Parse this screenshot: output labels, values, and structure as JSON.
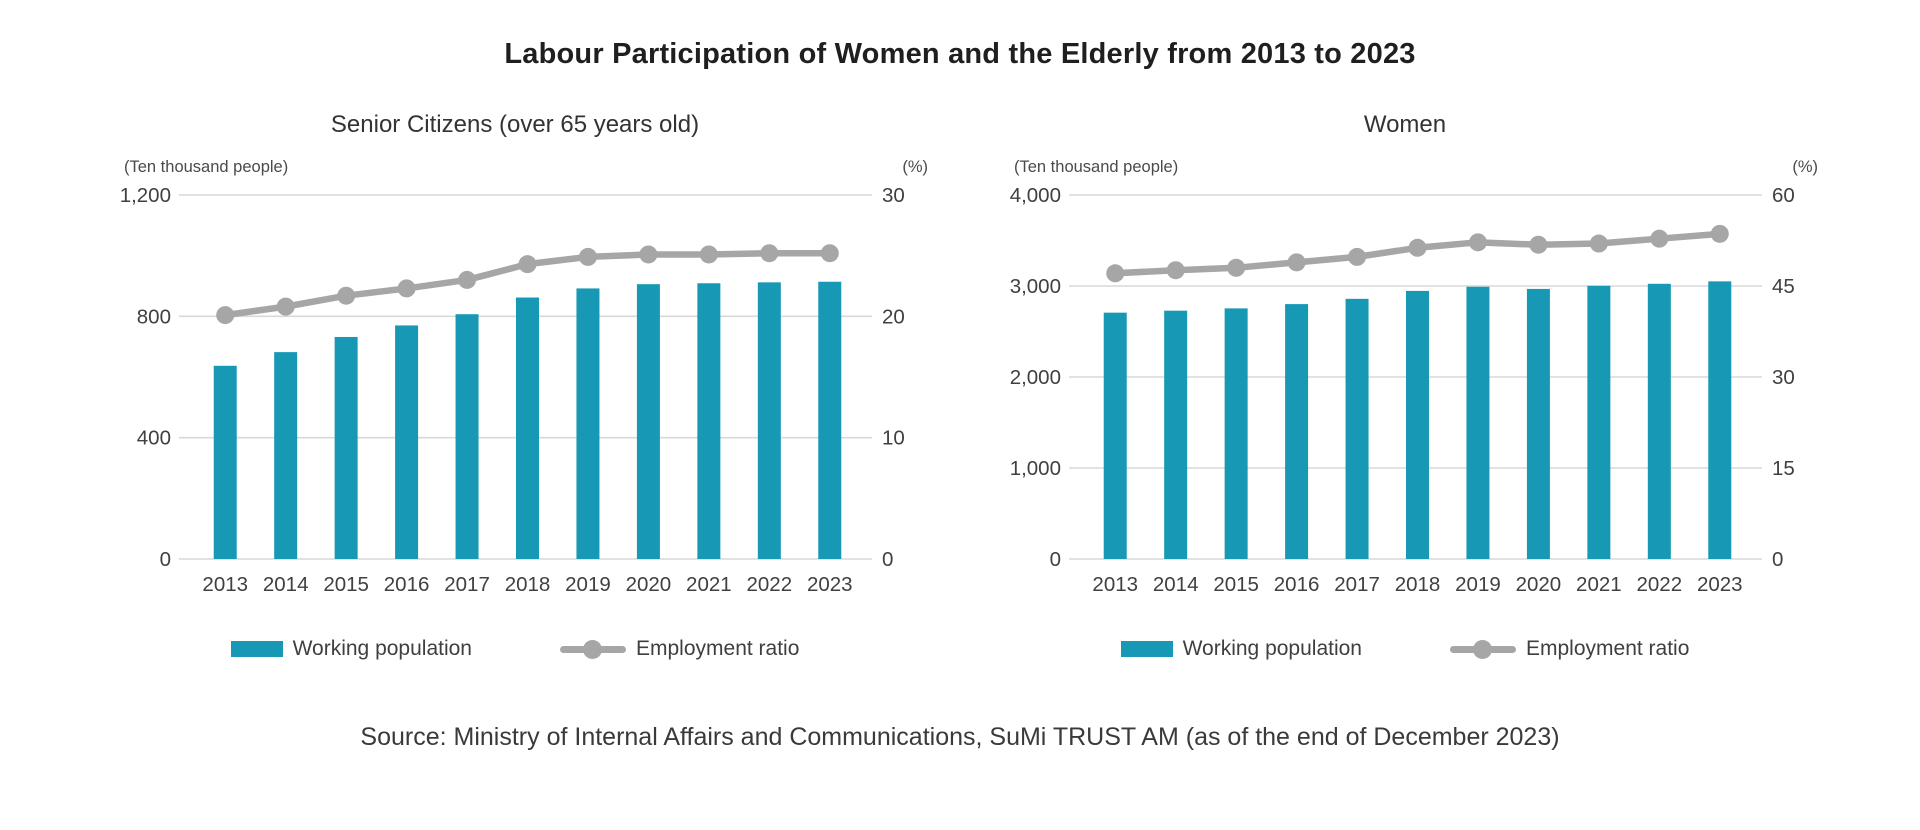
{
  "page": {
    "title": "Labour Participation of Women and the Elderly from 2013 to 2023",
    "source": "Source: Ministry of Internal Affairs and Communications, SuMi TRUST AM (as of the end of December 2023)"
  },
  "colors": {
    "bar": "#1798B4",
    "line": "#A6A6A6",
    "grid": "#D9D9D9",
    "text": "#404040"
  },
  "chart_data": [
    {
      "type": "bar",
      "subtype": "bar-line-combo",
      "title": "Senior Citizens (over 65 years old)",
      "categories": [
        "2013",
        "2014",
        "2015",
        "2016",
        "2017",
        "2018",
        "2019",
        "2020",
        "2021",
        "2022",
        "2023"
      ],
      "left_axis": {
        "label": "(Ten thousand people)",
        "ticks": [
          0,
          400,
          800,
          1200
        ],
        "max": 1200
      },
      "right_axis": {
        "label": "(%)",
        "ticks": [
          0,
          10,
          20,
          30
        ],
        "max": 30
      },
      "grid": true,
      "legend_position": "bottom",
      "series": [
        {
          "name": "Working population",
          "type": "bar",
          "axis": "left",
          "values": [
            637,
            682,
            732,
            770,
            807,
            862,
            892,
            906,
            909,
            912,
            914
          ]
        },
        {
          "name": "Employment ratio",
          "type": "line",
          "axis": "right",
          "values": [
            20.1,
            20.8,
            21.7,
            22.3,
            23.0,
            24.3,
            24.9,
            25.1,
            25.1,
            25.2,
            25.2
          ]
        }
      ]
    },
    {
      "type": "bar",
      "subtype": "bar-line-combo",
      "title": "Women",
      "categories": [
        "2013",
        "2014",
        "2015",
        "2016",
        "2017",
        "2018",
        "2019",
        "2020",
        "2021",
        "2022",
        "2023"
      ],
      "left_axis": {
        "label": "(Ten thousand people)",
        "ticks": [
          0,
          1000,
          2000,
          3000,
          4000
        ],
        "max": 4000
      },
      "right_axis": {
        "label": "(%)",
        "ticks": [
          0,
          15,
          30,
          45,
          60
        ],
        "max": 60
      },
      "grid": true,
      "legend_position": "bottom",
      "series": [
        {
          "name": "Working population",
          "type": "bar",
          "axis": "left",
          "values": [
            2707,
            2729,
            2754,
            2801,
            2859,
            2946,
            2992,
            2968,
            3002,
            3024,
            3051
          ]
        },
        {
          "name": "Employment ratio",
          "type": "line",
          "axis": "right",
          "values": [
            47.1,
            47.6,
            48.0,
            48.9,
            49.8,
            51.3,
            52.2,
            51.8,
            52.0,
            52.8,
            53.6
          ]
        }
      ]
    }
  ]
}
